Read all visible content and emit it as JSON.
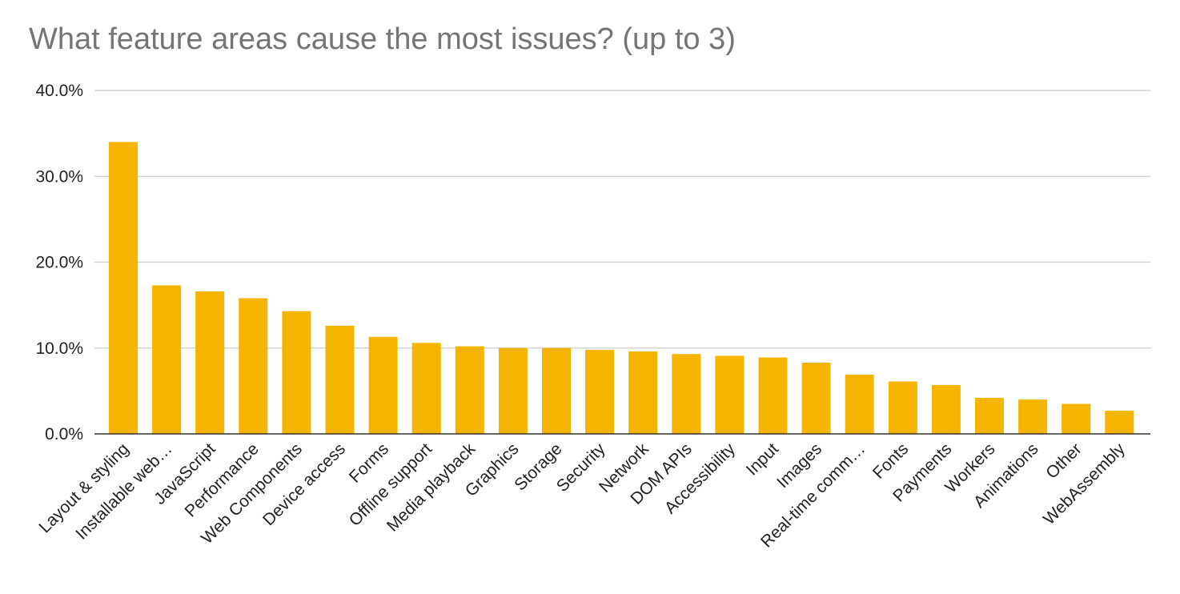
{
  "chart_data": {
    "type": "bar",
    "title": "What feature areas cause the most issues? (up to 3)",
    "xlabel": "",
    "ylabel": "",
    "ylim": [
      0,
      40
    ],
    "yticks": [
      "0.0%",
      "10.0%",
      "20.0%",
      "30.0%",
      "40.0%"
    ],
    "ytick_values": [
      0,
      10,
      20,
      30,
      40
    ],
    "grid": true,
    "legend": "none",
    "bar_color": "#F4B400",
    "categories": [
      "Layout & styling",
      "Installable web…",
      "JavaScript",
      "Performance",
      "Web Components",
      "Device access",
      "Forms",
      "Offline support",
      "Media playback",
      "Graphics",
      "Storage",
      "Security",
      "Network",
      "DOM APIs",
      "Accessibility",
      "Input",
      "Images",
      "Real-time comm…",
      "Fonts",
      "Payments",
      "Workers",
      "Animations",
      "Other",
      "WebAssembly"
    ],
    "values": [
      34.0,
      17.3,
      16.6,
      15.8,
      14.3,
      12.6,
      11.3,
      10.6,
      10.2,
      10.0,
      10.0,
      9.8,
      9.6,
      9.3,
      9.1,
      8.9,
      8.3,
      6.9,
      6.1,
      5.7,
      4.2,
      4.0,
      3.5,
      2.7
    ]
  }
}
